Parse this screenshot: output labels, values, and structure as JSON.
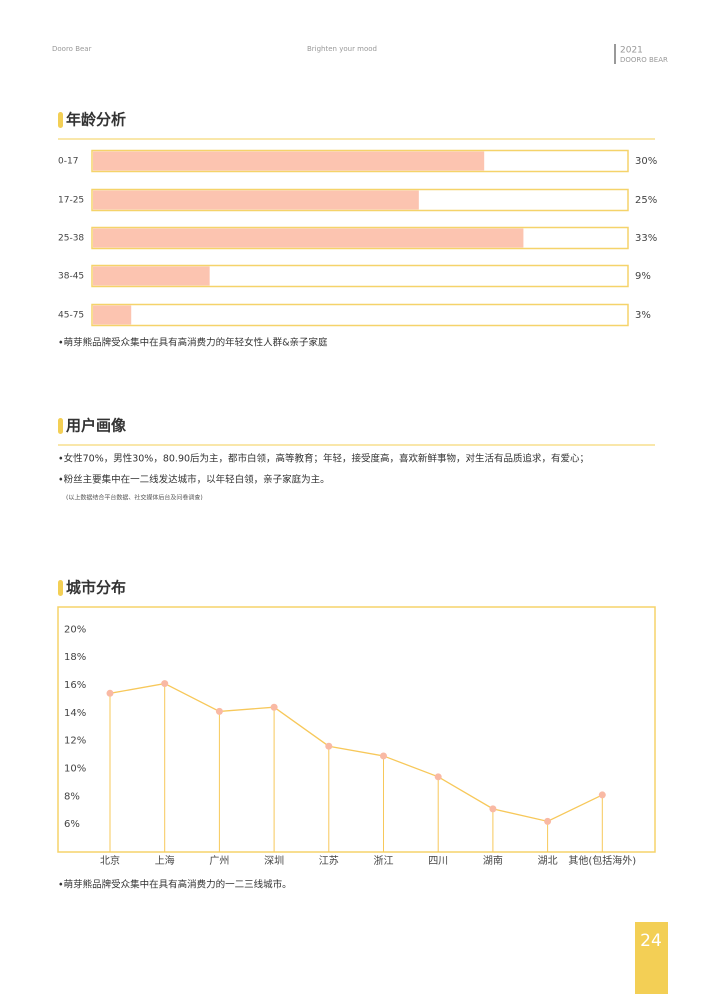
{
  "header": {
    "left": "Dooro Bear",
    "center": "Brighten your mood",
    "year": "2021",
    "brand": "DOORO BEAR"
  },
  "sections": [
    {
      "title": "年龄分析",
      "notes": [
        "•萌芽熊品牌受众集中在具有高消费力的年轻女性人群&亲子家庭"
      ]
    },
    {
      "title": "用户画像",
      "notes": [
        "•女性70%，男性30%，80.90后为主，都市白领，高等教育；年轻，接受度高，喜欢新鲜事物，对生活有品质追求，有爱心；",
        "•粉丝主要集中在一二线发达城市，以年轻白领，亲子家庭为主。",
        "(以上数据结合平台数据、社交媒体后台及问卷调查)"
      ]
    },
    {
      "title": "城市分布",
      "notes": [
        "•萌芽熊品牌受众集中在具有高消费力的一二三线城市。"
      ]
    }
  ],
  "page_number": "24",
  "chart_data": [
    {
      "type": "bar",
      "orientation": "horizontal",
      "categories": [
        "0-17",
        "17-25",
        "25-38",
        "38-45",
        "45-75"
      ],
      "values": [
        30,
        25,
        33,
        9,
        3
      ],
      "value_labels": [
        "30%",
        "25%",
        "33%",
        "9%",
        "3%"
      ],
      "xlim": [
        0,
        41
      ],
      "color": "#fcc4b0",
      "border_color": "#f5d36a"
    },
    {
      "type": "line",
      "categories": [
        "北京",
        "上海",
        "广州",
        "深圳",
        "江苏",
        "浙江",
        "四川",
        "湖南",
        "湖北",
        "其他(包括海外)"
      ],
      "values": [
        15.4,
        16.1,
        14.1,
        14.4,
        11.6,
        10.9,
        9.4,
        7.1,
        6.2,
        8.1
      ],
      "ylim": [
        4,
        21.6
      ],
      "yticks": [
        {
          "value": 20,
          "label": "20%"
        },
        {
          "value": 18,
          "label": "18%"
        },
        {
          "value": 16,
          "label": "16%"
        },
        {
          "value": 14,
          "label": "14%"
        },
        {
          "value": 12,
          "label": "12%"
        },
        {
          "value": 10,
          "label": "10%"
        },
        {
          "value": 8,
          "label": "8%"
        },
        {
          "value": 6,
          "label": "6%"
        }
      ],
      "color": "#f7c85a",
      "marker_color": "#f9b9a4",
      "drop_lines": true,
      "border_color": "#f5d36a"
    }
  ]
}
